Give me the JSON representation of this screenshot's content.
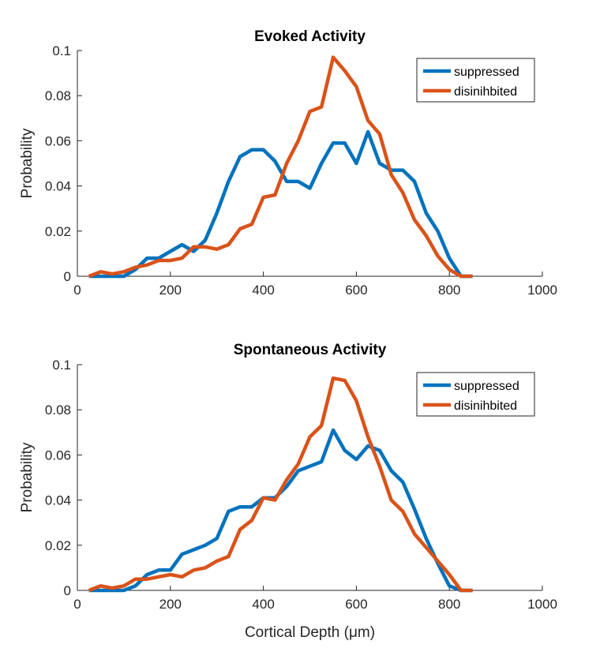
{
  "colors": {
    "suppressed": "#0072BD",
    "disinihbited": "#D95319"
  },
  "chart_data": [
    {
      "type": "line",
      "title": "Evoked Activity",
      "xlabel": "",
      "ylabel": "Probability",
      "xlim": [
        0,
        1000
      ],
      "ylim": [
        0,
        0.1
      ],
      "xticks": [
        "0",
        "200",
        "400",
        "600",
        "800",
        "1000"
      ],
      "yticks": [
        "0",
        "0.02",
        "0.04",
        "0.06",
        "0.08",
        "0.1"
      ],
      "grid": false,
      "legend_position": "top-right",
      "x": [
        25,
        50,
        75,
        100,
        125,
        150,
        175,
        200,
        225,
        250,
        275,
        300,
        325,
        350,
        375,
        400,
        425,
        450,
        475,
        500,
        525,
        550,
        575,
        600,
        625,
        650,
        675,
        700,
        725,
        750,
        775,
        800,
        825,
        850
      ],
      "series": [
        {
          "name": "suppressed",
          "color": "#0072BD",
          "values": [
            0,
            0,
            0,
            0,
            0.003,
            0.008,
            0.008,
            0.011,
            0.014,
            0.011,
            0.016,
            0.028,
            0.042,
            0.053,
            0.056,
            0.056,
            0.051,
            0.042,
            0.042,
            0.039,
            0.05,
            0.059,
            0.059,
            0.05,
            0.064,
            0.05,
            0.047,
            0.047,
            0.042,
            0.028,
            0.02,
            0.008,
            0,
            0
          ]
        },
        {
          "name": "disinihbited",
          "color": "#D95319",
          "values": [
            0,
            0.002,
            0.001,
            0.002,
            0.004,
            0.005,
            0.007,
            0.007,
            0.008,
            0.013,
            0.013,
            0.012,
            0.014,
            0.021,
            0.023,
            0.035,
            0.036,
            0.05,
            0.06,
            0.073,
            0.075,
            0.097,
            0.091,
            0.084,
            0.069,
            0.063,
            0.045,
            0.037,
            0.025,
            0.018,
            0.009,
            0.003,
            0,
            0
          ]
        }
      ]
    },
    {
      "type": "line",
      "title": "Spontaneous Activity",
      "xlabel": "Cortical Depth (μm)",
      "ylabel": "Probability",
      "xlim": [
        0,
        1000
      ],
      "ylim": [
        0,
        0.1
      ],
      "xticks": [
        "0",
        "200",
        "400",
        "600",
        "800",
        "1000"
      ],
      "yticks": [
        "0",
        "0.02",
        "0.04",
        "0.06",
        "0.08",
        "0.1"
      ],
      "grid": false,
      "legend_position": "top-right",
      "x": [
        25,
        50,
        75,
        100,
        125,
        150,
        175,
        200,
        225,
        250,
        275,
        300,
        325,
        350,
        375,
        400,
        425,
        450,
        475,
        500,
        525,
        550,
        575,
        600,
        625,
        650,
        675,
        700,
        725,
        750,
        775,
        800,
        825,
        850
      ],
      "series": [
        {
          "name": "suppressed",
          "color": "#0072BD",
          "values": [
            0,
            0,
            0,
            0,
            0.002,
            0.007,
            0.009,
            0.009,
            0.016,
            0.018,
            0.02,
            0.023,
            0.035,
            0.037,
            0.037,
            0.041,
            0.041,
            0.046,
            0.053,
            0.055,
            0.057,
            0.071,
            0.062,
            0.058,
            0.064,
            0.062,
            0.053,
            0.048,
            0.036,
            0.023,
            0.012,
            0.002,
            0,
            0
          ]
        },
        {
          "name": "disinihbited",
          "color": "#D95319",
          "values": [
            0,
            0.002,
            0.001,
            0.002,
            0.005,
            0.005,
            0.006,
            0.007,
            0.006,
            0.009,
            0.01,
            0.013,
            0.015,
            0.027,
            0.031,
            0.041,
            0.04,
            0.049,
            0.056,
            0.068,
            0.073,
            0.094,
            0.093,
            0.084,
            0.068,
            0.055,
            0.04,
            0.035,
            0.025,
            0.019,
            0.013,
            0.007,
            0,
            0
          ]
        }
      ]
    }
  ]
}
